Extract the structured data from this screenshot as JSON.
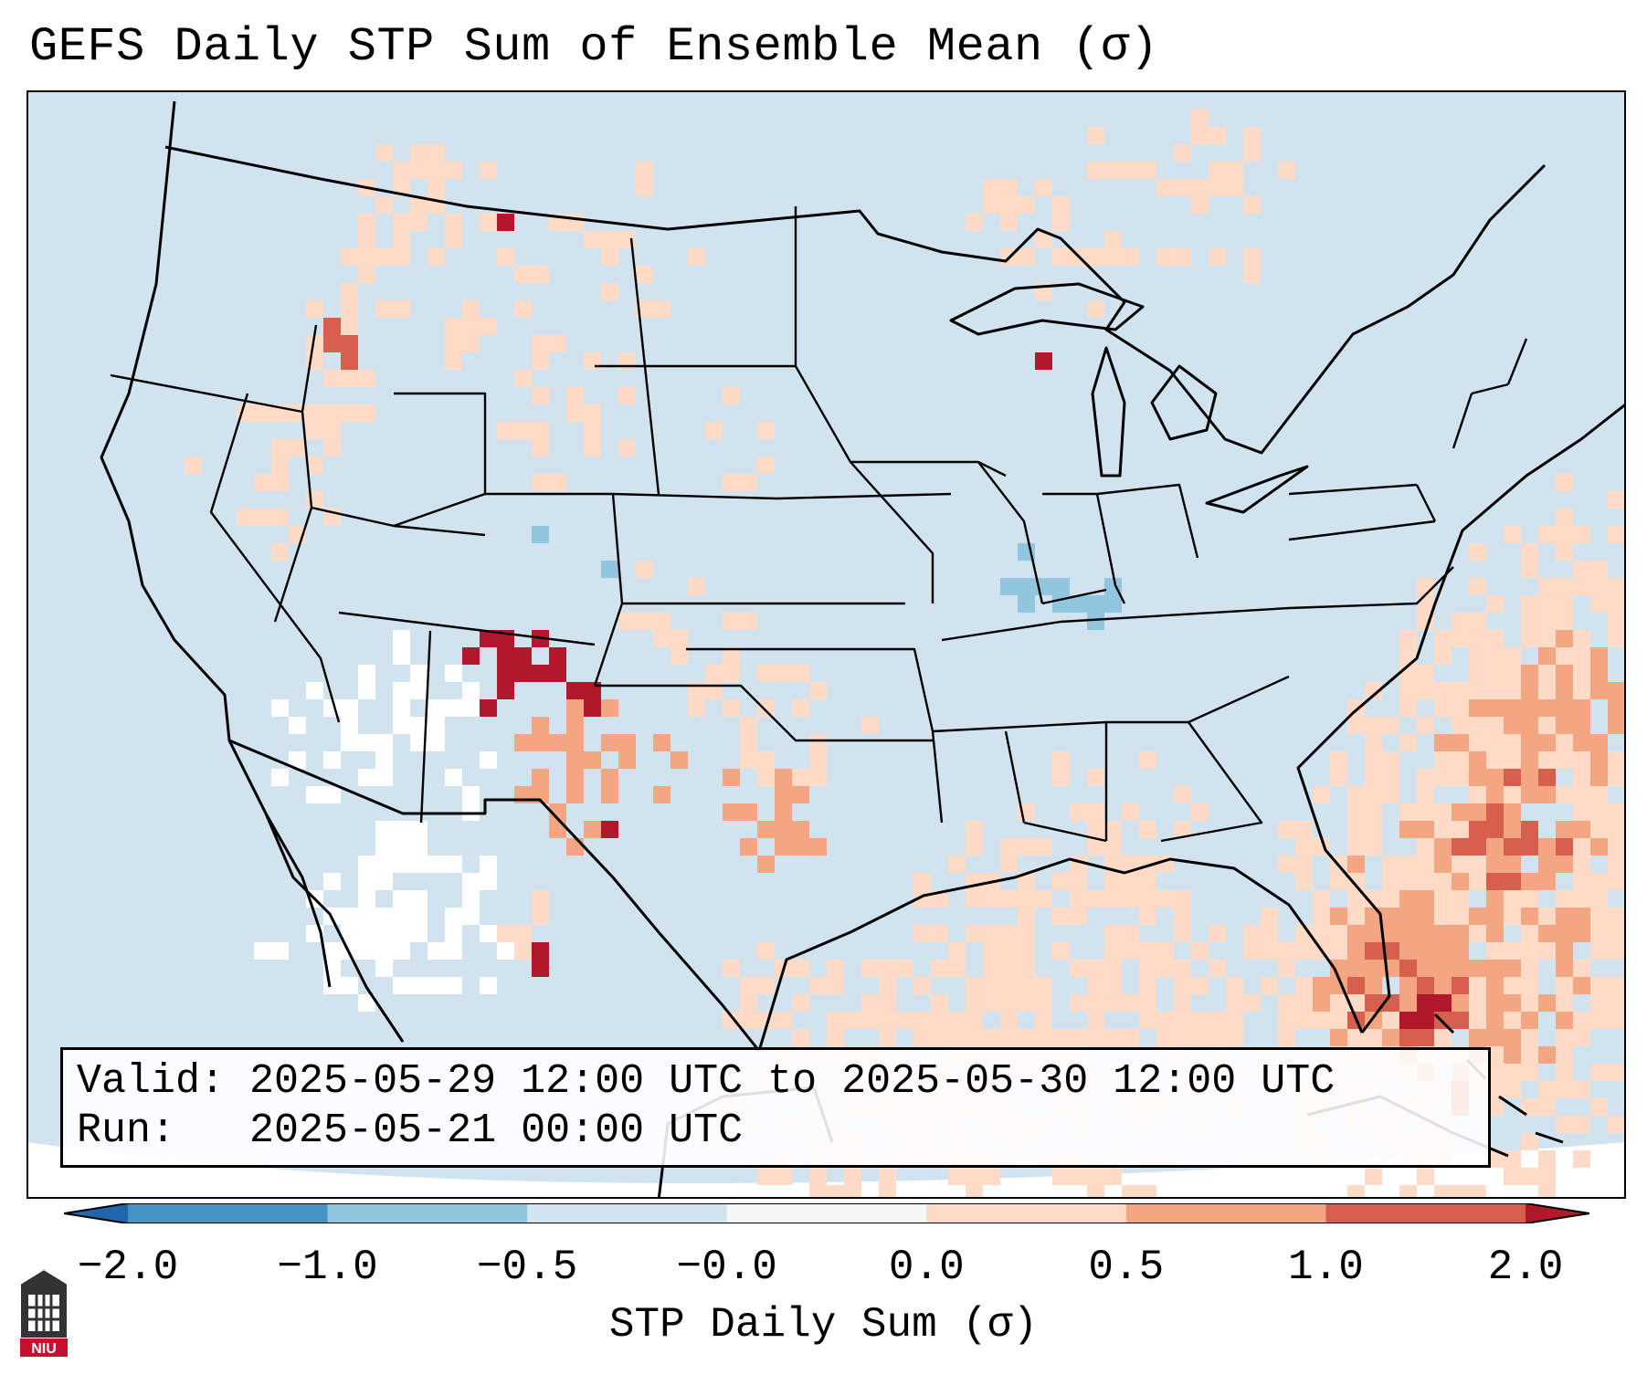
{
  "title": "GEFS Daily STP Sum of Ensemble Mean (σ)",
  "info": {
    "valid_label": "Valid:",
    "valid_value": "2025-05-29 12:00 UTC to 2025-05-30 12:00 UTC",
    "run_label": "Run:",
    "run_value": "2025-05-21 00:00 UTC"
  },
  "map": {
    "region": "Contiguous United States, northern Mexico, Gulf of Mexico, southern Canada",
    "ocean_color": "#d0e3ef",
    "land_color": "#d0e3ef"
  },
  "colorbar": {
    "label": "STP Daily Sum (σ)",
    "tick_labels": [
      "−2.0",
      "−1.0",
      "−0.5",
      "−0.0",
      "0.0",
      "0.5",
      "1.0",
      "2.0"
    ],
    "bins": [
      {
        "from": -3.0,
        "to": -2.0,
        "color": "#2166ac"
      },
      {
        "from": -2.0,
        "to": -1.0,
        "color": "#4393c3"
      },
      {
        "from": -1.0,
        "to": -0.5,
        "color": "#92c5de"
      },
      {
        "from": -0.5,
        "to": -0.0,
        "color": "#d1e5f0"
      },
      {
        "from": -0.0,
        "to": 0.0,
        "color": "#f7f7f7"
      },
      {
        "from": 0.0,
        "to": 0.5,
        "color": "#fddbc7"
      },
      {
        "from": 0.5,
        "to": 1.0,
        "color": "#f4a582"
      },
      {
        "from": 1.0,
        "to": 2.0,
        "color": "#d6604d"
      },
      {
        "from": 2.0,
        "to": 3.0,
        "color": "#b2182b"
      }
    ]
  },
  "logo": {
    "text": "NIU",
    "name": "Northern Illinois University"
  }
}
